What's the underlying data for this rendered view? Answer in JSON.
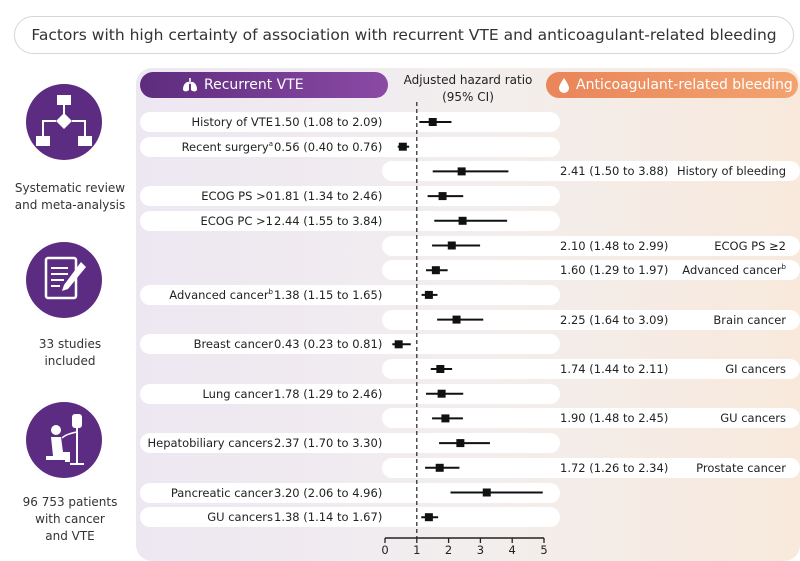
{
  "title": "Factors with high certainty of association with recurrent VTE and anticoagulant-related bleeding",
  "left_panel": {
    "items": [
      {
        "icon": "flowchart-icon",
        "label_lines": [
          "Systematic review",
          "and meta-analysis"
        ]
      },
      {
        "icon": "document-pencil-icon",
        "label_lines": [
          "33 studies",
          "included"
        ]
      },
      {
        "icon": "patient-iv-drip-icon",
        "label_lines": [
          "96 753 patients",
          "with cancer",
          "and VTE"
        ]
      }
    ]
  },
  "headers": {
    "recurrent": "Recurrent VTE",
    "recurrent_icon": "lungs-icon",
    "hr_line1": "Adjusted hazard ratio",
    "hr_line2": "(95% CI)",
    "bleeding": "Anticoagulant-related bleeding",
    "bleeding_icon": "blood-drop-icon"
  },
  "colors": {
    "purple": "#5e2c7e",
    "orange": "#ef9a66",
    "marker": "#111111"
  },
  "chart_data": {
    "type": "forest",
    "title": "Factors with high certainty of association with recurrent VTE and anticoagulant-related bleeding",
    "xlabel": "Adjusted hazard ratio (95% CI)",
    "xlim": [
      0,
      5
    ],
    "xticks": [
      "0",
      "1",
      "2",
      "3",
      "4",
      "5"
    ],
    "reference_line": 1,
    "rows": [
      {
        "outcome": "recurrent",
        "label": "History of VTE",
        "sup": "",
        "text": "1.50 (1.08 to 2.09)",
        "hr": 1.5,
        "lo": 1.08,
        "hi": 2.09
      },
      {
        "outcome": "recurrent",
        "label": "Recent surgery",
        "sup": "a",
        "text": "0.56 (0.40 to 0.76)",
        "hr": 0.56,
        "lo": 0.4,
        "hi": 0.76
      },
      {
        "outcome": "bleeding",
        "label": "History of bleeding",
        "sup": "",
        "text": "2.41 (1.50 to 3.88)",
        "hr": 2.41,
        "lo": 1.5,
        "hi": 3.88
      },
      {
        "outcome": "recurrent",
        "label": "ECOG PS >0",
        "sup": "",
        "text": "1.81 (1.34 to 2.46)",
        "hr": 1.81,
        "lo": 1.34,
        "hi": 2.46
      },
      {
        "outcome": "recurrent",
        "label": "ECOG PC >1",
        "sup": "",
        "text": "2.44 (1.55 to 3.84)",
        "hr": 2.44,
        "lo": 1.55,
        "hi": 3.84
      },
      {
        "outcome": "bleeding",
        "label": "ECOG PS ≥2",
        "sup": "",
        "text": "2.10 (1.48 to 2.99)",
        "hr": 2.1,
        "lo": 1.48,
        "hi": 2.99
      },
      {
        "outcome": "bleeding",
        "label": "Advanced cancer",
        "sup": "b",
        "text": "1.60 (1.29 to 1.97)",
        "hr": 1.6,
        "lo": 1.29,
        "hi": 1.97
      },
      {
        "outcome": "recurrent",
        "label": "Advanced cancer",
        "sup": "b",
        "text": "1.38 (1.15 to 1.65)",
        "hr": 1.38,
        "lo": 1.15,
        "hi": 1.65
      },
      {
        "outcome": "bleeding",
        "label": "Brain cancer",
        "sup": "",
        "text": "2.25 (1.64 to 3.09)",
        "hr": 2.25,
        "lo": 1.64,
        "hi": 3.09
      },
      {
        "outcome": "recurrent",
        "label": "Breast cancer",
        "sup": "",
        "text": "0.43 (0.23 to 0.81)",
        "hr": 0.43,
        "lo": 0.23,
        "hi": 0.81
      },
      {
        "outcome": "bleeding",
        "label": "GI cancers",
        "sup": "",
        "text": "1.74 (1.44 to 2.11)",
        "hr": 1.74,
        "lo": 1.44,
        "hi": 2.11
      },
      {
        "outcome": "recurrent",
        "label": "Lung cancer",
        "sup": "",
        "text": "1.78 (1.29 to 2.46)",
        "hr": 1.78,
        "lo": 1.29,
        "hi": 2.46
      },
      {
        "outcome": "bleeding",
        "label": "GU cancers",
        "sup": "",
        "text": "1.90 (1.48 to 2.45)",
        "hr": 1.9,
        "lo": 1.48,
        "hi": 2.45
      },
      {
        "outcome": "recurrent",
        "label": "Hepatobiliary cancers",
        "sup": "",
        "text": "2.37 (1.70 to 3.30)",
        "hr": 2.37,
        "lo": 1.7,
        "hi": 3.3
      },
      {
        "outcome": "bleeding",
        "label": "Prostate cancer",
        "sup": "",
        "text": "1.72 (1.26 to 2.34)",
        "hr": 1.72,
        "lo": 1.26,
        "hi": 2.34
      },
      {
        "outcome": "recurrent",
        "label": "Pancreatic cancer",
        "sup": "",
        "text": "3.20 (2.06 to 4.96)",
        "hr": 3.2,
        "lo": 2.06,
        "hi": 4.96
      },
      {
        "outcome": "recurrent",
        "label": "GU cancers",
        "sup": "",
        "text": "1.38 (1.14 to 1.67)",
        "hr": 1.38,
        "lo": 1.14,
        "hi": 1.67
      }
    ]
  }
}
